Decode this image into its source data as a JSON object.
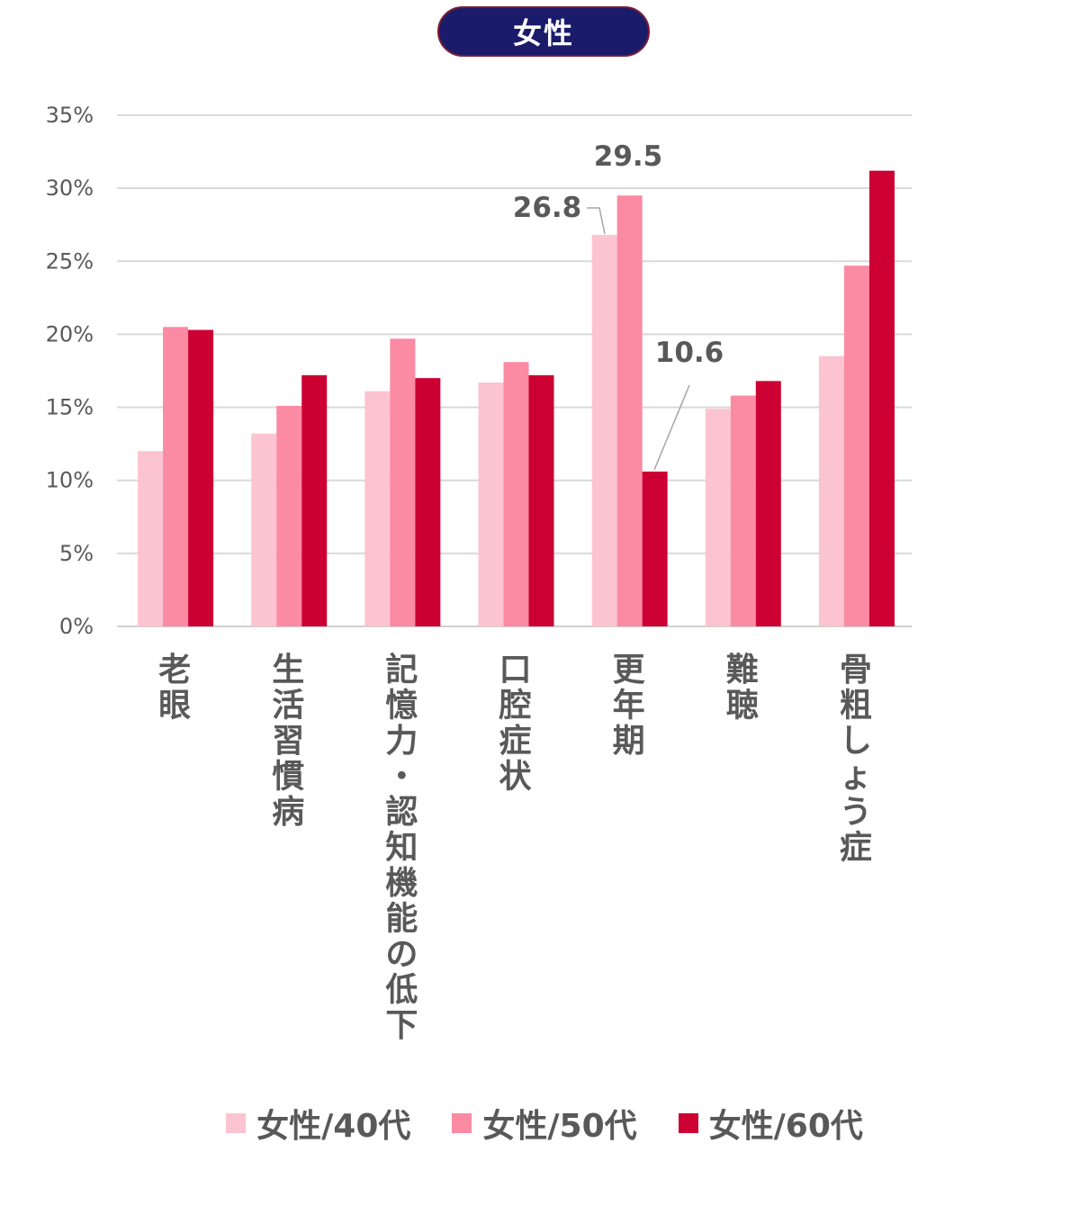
{
  "title": "女性",
  "chart_data": {
    "type": "bar",
    "categories": [
      "老眼",
      "生活習慣病",
      "記憶力・認知機能の低下",
      "口腔症状",
      "更年期",
      "難聴",
      "骨粗しょう症"
    ],
    "series": [
      {
        "name": "女性/40代",
        "color": "#fcc3d0",
        "values": [
          12.0,
          13.2,
          16.1,
          16.7,
          26.8,
          14.9,
          18.5
        ]
      },
      {
        "name": "女性/50代",
        "color": "#fb8aa3",
        "values": [
          20.5,
          15.1,
          19.7,
          18.1,
          29.5,
          15.8,
          24.7
        ]
      },
      {
        "name": "女性/60代",
        "color": "#cc0033",
        "values": [
          20.3,
          17.2,
          17.0,
          17.2,
          10.6,
          16.8,
          31.2
        ]
      }
    ],
    "y_ticks": [
      "0%",
      "5%",
      "10%",
      "15%",
      "20%",
      "25%",
      "30%",
      "35%"
    ],
    "ylim": [
      0,
      35
    ],
    "grid": true,
    "legend_position": "bottom",
    "annotations": [
      {
        "text": "26.8",
        "category": "更年期",
        "series": "女性/40代",
        "value": 26.8
      },
      {
        "text": "29.5",
        "category": "更年期",
        "series": "女性/50代",
        "value": 29.5
      },
      {
        "text": "10.6",
        "category": "更年期",
        "series": "女性/60代",
        "value": 10.6
      }
    ]
  }
}
